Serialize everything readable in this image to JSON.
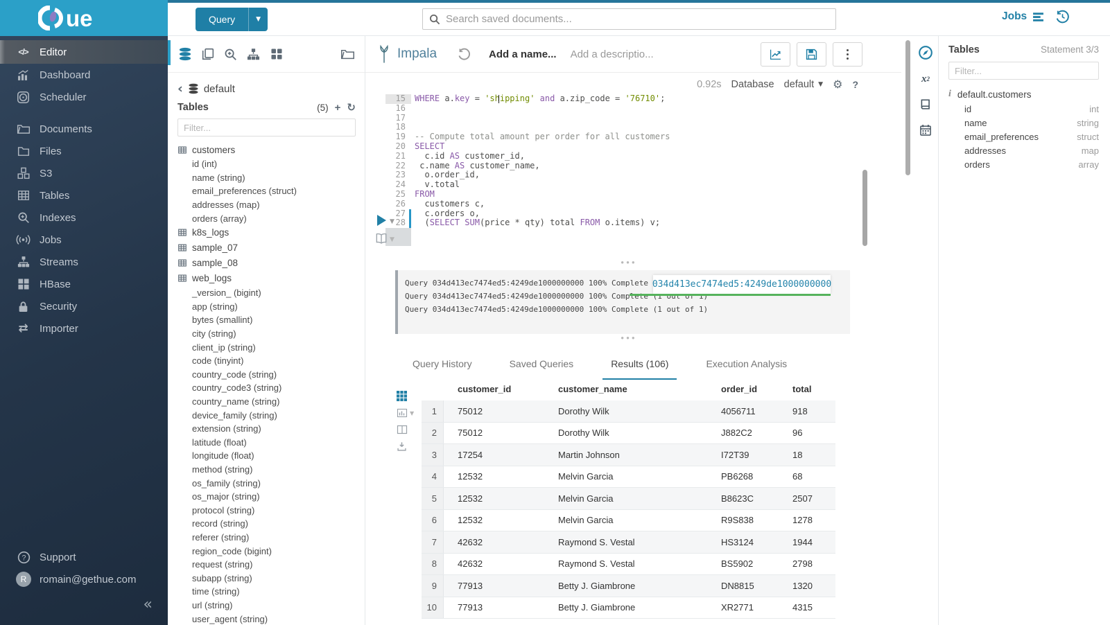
{
  "brand": {
    "logo_text": "ue",
    "query_button": "Query"
  },
  "topbar": {
    "search_placeholder": "Search saved documents...",
    "jobs_label": "Jobs"
  },
  "sidebar": {
    "items": [
      {
        "label": "Editor",
        "icon": "code-icon",
        "active": true
      },
      {
        "label": "Dashboard",
        "icon": "dashboard-icon"
      },
      {
        "label": "Scheduler",
        "icon": "scheduler-icon"
      },
      {
        "label": "Documents",
        "icon": "documents-icon",
        "group_break": true
      },
      {
        "label": "Files",
        "icon": "folder-icon"
      },
      {
        "label": "S3",
        "icon": "cubes-icon"
      },
      {
        "label": "Tables",
        "icon": "table-icon"
      },
      {
        "label": "Indexes",
        "icon": "search-plus-icon"
      },
      {
        "label": "Jobs",
        "icon": "broadcast-icon"
      },
      {
        "label": "Streams",
        "icon": "sitemap-icon"
      },
      {
        "label": "HBase",
        "icon": "grid-icon"
      },
      {
        "label": "Security",
        "icon": "lock-icon"
      },
      {
        "label": "Importer",
        "icon": "swap-icon"
      }
    ],
    "support_label": "Support",
    "user_email": "romain@gethue.com",
    "user_initial": "R"
  },
  "left_assist": {
    "breadcrumb_db": "default",
    "section_title": "Tables",
    "table_count": "(5)",
    "filter_placeholder": "Filter...",
    "tables": [
      {
        "name": "customers",
        "columns": [
          "id (int)",
          "name (string)",
          "email_preferences (struct)",
          "addresses (map)",
          "orders (array)"
        ]
      },
      {
        "name": "k8s_logs",
        "columns": []
      },
      {
        "name": "sample_07",
        "columns": []
      },
      {
        "name": "sample_08",
        "columns": []
      },
      {
        "name": "web_logs",
        "columns": [
          "_version_ (bigint)",
          "app (string)",
          "bytes (smallint)",
          "city (string)",
          "client_ip (string)",
          "code (tinyint)",
          "country_code (string)",
          "country_code3 (string)",
          "country_name (string)",
          "device_family (string)",
          "extension (string)",
          "latitude (float)",
          "longitude (float)",
          "method (string)",
          "os_family (string)",
          "os_major (string)",
          "protocol (string)",
          "record (string)",
          "referer (string)",
          "region_code (bigint)",
          "request (string)",
          "subapp (string)",
          "time (string)",
          "url (string)",
          "user_agent (string)"
        ]
      }
    ]
  },
  "editor": {
    "engine": "Impala",
    "name_placeholder": "Add a name...",
    "description_placeholder": "Add a descriptio...",
    "exec_time": "0.92s",
    "database_label": "Database",
    "database_value": "default",
    "lines": [
      {
        "n": 15,
        "cursor_line": true,
        "tokens": [
          [
            "WHERE",
            "kw"
          ],
          [
            " a.",
            ""
          ],
          [
            "key",
            "kw"
          ],
          [
            " = ",
            ""
          ],
          [
            "'shipping'",
            "str"
          ],
          [
            " ",
            ""
          ],
          [
            "and",
            "kw"
          ],
          [
            " a.zip_code = ",
            ""
          ],
          [
            "'76710'",
            "str"
          ],
          [
            ";",
            ""
          ]
        ]
      },
      {
        "n": 16,
        "tokens": []
      },
      {
        "n": 17,
        "tokens": []
      },
      {
        "n": 18,
        "tokens": []
      },
      {
        "n": 19,
        "tokens": [
          [
            "-- Compute total amount per order for all customers",
            "com"
          ]
        ]
      },
      {
        "n": 20,
        "tokens": [
          [
            "SELECT",
            "kw"
          ]
        ]
      },
      {
        "n": 21,
        "tokens": [
          [
            "  c.id ",
            ""
          ],
          [
            "AS",
            "kw"
          ],
          [
            " customer_id,",
            ""
          ]
        ]
      },
      {
        "n": 22,
        "tokens": [
          [
            " c.name ",
            ""
          ],
          [
            "AS",
            "kw"
          ],
          [
            " customer_name,",
            ""
          ]
        ]
      },
      {
        "n": 23,
        "tokens": [
          [
            "  o.order_id,",
            ""
          ]
        ]
      },
      {
        "n": 24,
        "tokens": [
          [
            "  v.total",
            ""
          ]
        ]
      },
      {
        "n": 25,
        "tokens": [
          [
            "FROM",
            "kw"
          ]
        ]
      },
      {
        "n": 26,
        "tokens": [
          [
            "  customers c,",
            ""
          ]
        ]
      },
      {
        "n": 27,
        "marked": true,
        "tokens": [
          [
            "  c.orders o,",
            ""
          ]
        ]
      },
      {
        "n": 28,
        "marked": true,
        "tokens": [
          [
            "  (",
            ""
          ],
          [
            "SELECT",
            "kw"
          ],
          [
            " ",
            ""
          ],
          [
            "SUM",
            "kw"
          ],
          [
            "(price * qty) total ",
            ""
          ],
          [
            "FROM",
            "kw"
          ],
          [
            " o.items) v;",
            ""
          ]
        ]
      }
    ],
    "log_lines": [
      "Query 034d413ec7474ed5:4249de1000000000 100% Complete (1 out of 1)",
      "Query 034d413ec7474ed5:4249de1000000000 100% Complete (1 out of 1)",
      "Query 034d413ec7474ed5:4249de1000000000 100% Complete (1 out of 1)"
    ],
    "query_id_overlay": "034d413ec7474ed5:4249de1000000000"
  },
  "tabs": [
    {
      "label": "Query History"
    },
    {
      "label": "Saved Queries"
    },
    {
      "label": "Results (106)",
      "active": true
    },
    {
      "label": "Execution Analysis"
    }
  ],
  "results": {
    "headers": [
      "customer_id",
      "customer_name",
      "order_id",
      "total"
    ],
    "rows": [
      [
        "1",
        "75012",
        "Dorothy Wilk",
        "4056711",
        "918"
      ],
      [
        "2",
        "75012",
        "Dorothy Wilk",
        "J882C2",
        "96"
      ],
      [
        "3",
        "17254",
        "Martin Johnson",
        "I72T39",
        "18"
      ],
      [
        "4",
        "12532",
        "Melvin Garcia",
        "PB6268",
        "68"
      ],
      [
        "5",
        "12532",
        "Melvin Garcia",
        "B8623C",
        "2507"
      ],
      [
        "6",
        "12532",
        "Melvin Garcia",
        "R9S838",
        "1278"
      ],
      [
        "7",
        "42632",
        "Raymond S. Vestal",
        "HS3124",
        "1944"
      ],
      [
        "8",
        "42632",
        "Raymond S. Vestal",
        "BS5902",
        "2798"
      ],
      [
        "9",
        "77913",
        "Betty J. Giambrone",
        "DN8815",
        "1320"
      ],
      [
        "10",
        "77913",
        "Betty J. Giambrone",
        "XR2771",
        "4315"
      ]
    ]
  },
  "right_assist": {
    "title": "Tables",
    "statement": "Statement 3/3",
    "filter_placeholder": "Filter...",
    "table_name": "default.customers",
    "columns": [
      {
        "name": "id",
        "type": "int"
      },
      {
        "name": "name",
        "type": "string"
      },
      {
        "name": "email_preferences",
        "type": "struct"
      },
      {
        "name": "addresses",
        "type": "map"
      },
      {
        "name": "orders",
        "type": "array"
      }
    ]
  },
  "colors": {
    "primary": "#2180a6",
    "logo_bg": "#2ba0c8",
    "accent_green": "#56b35c"
  }
}
